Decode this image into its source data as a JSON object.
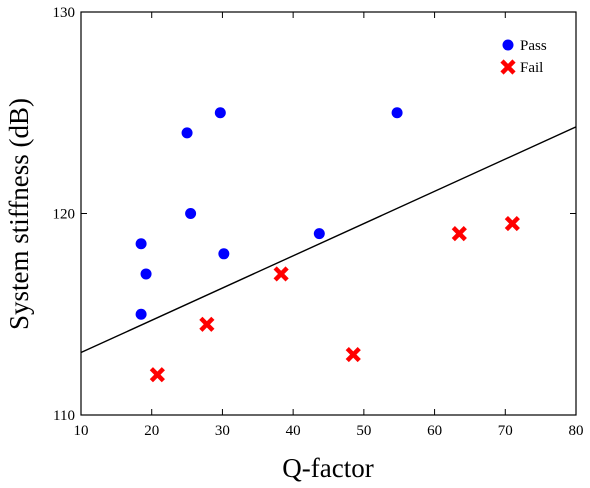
{
  "chart_data": {
    "type": "scatter",
    "title": "",
    "xlabel": "Q-factor",
    "ylabel": "System stiffness (dB)",
    "xlim": [
      10,
      80
    ],
    "ylim": [
      110,
      130
    ],
    "xticks": [
      10,
      20,
      30,
      40,
      50,
      60,
      70,
      80
    ],
    "yticks": [
      110,
      120,
      130
    ],
    "grid": false,
    "legend_position": "top-right",
    "series": [
      {
        "name": "Pass",
        "marker": "circle",
        "color": "#0000ff",
        "points": [
          {
            "x": 18.5,
            "y": 118.5
          },
          {
            "x": 19.2,
            "y": 117.0
          },
          {
            "x": 18.5,
            "y": 115.0
          },
          {
            "x": 25.0,
            "y": 124.0
          },
          {
            "x": 25.5,
            "y": 120.0
          },
          {
            "x": 29.7,
            "y": 125.0
          },
          {
            "x": 30.2,
            "y": 118.0
          },
          {
            "x": 43.7,
            "y": 119.0
          },
          {
            "x": 54.7,
            "y": 125.0
          }
        ]
      },
      {
        "name": "Fail",
        "marker": "x",
        "color": "#ff0000",
        "points": [
          {
            "x": 20.8,
            "y": 112.0
          },
          {
            "x": 27.8,
            "y": 114.5
          },
          {
            "x": 38.3,
            "y": 117.0
          },
          {
            "x": 48.5,
            "y": 113.0
          },
          {
            "x": 63.5,
            "y": 119.0
          },
          {
            "x": 71.0,
            "y": 119.5
          }
        ]
      }
    ],
    "fit_line": {
      "color": "#000000",
      "points": [
        {
          "x": 10,
          "y": 113.1
        },
        {
          "x": 80,
          "y": 124.3
        }
      ]
    }
  }
}
